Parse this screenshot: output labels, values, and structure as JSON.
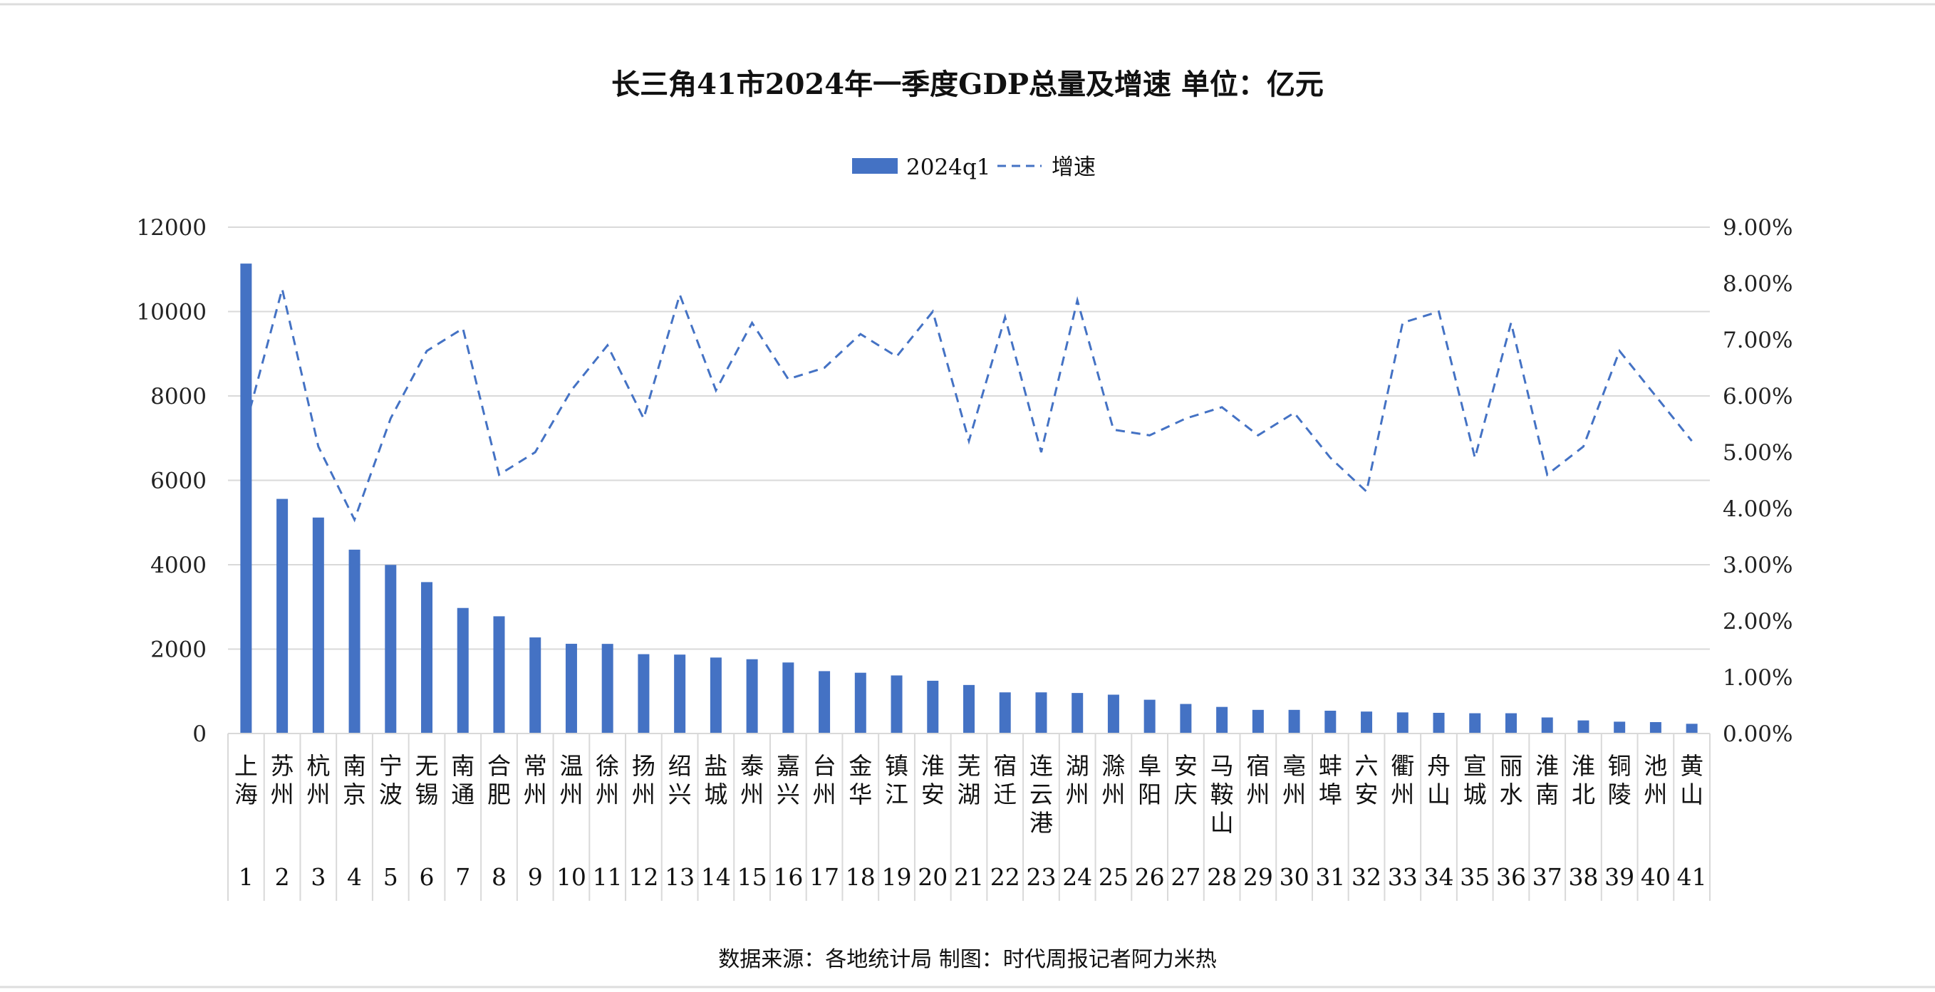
{
  "chart_data": {
    "type": "bar",
    "title": "长三角41市2024年一季度GDP总量及增速 单位：亿元",
    "source": "数据来源：各地统计局 制图：时代周报记者阿力米热",
    "legend": [
      "2024q1",
      "增速"
    ],
    "legend_position": "top",
    "colors": {
      "bar": "#4472C4",
      "line": "#4472C4",
      "grid": "#D9D9D9"
    },
    "ylim": [
      0,
      12000
    ],
    "y_ticks": [
      "0",
      "2000",
      "4000",
      "6000",
      "8000",
      "10000",
      "12000"
    ],
    "y2lim": [
      0,
      9
    ],
    "y2_ticks": [
      "0.00%",
      "1.00%",
      "2.00%",
      "3.00%",
      "4.00%",
      "5.00%",
      "6.00%",
      "7.00%",
      "8.00%",
      "9.00%"
    ],
    "categories": [
      "上海",
      "苏州",
      "杭州",
      "南京",
      "宁波",
      "无锡",
      "南通",
      "合肥",
      "常州",
      "温州",
      "徐州",
      "扬州",
      "绍兴",
      "盐城",
      "泰州",
      "嘉兴",
      "台州",
      "金华",
      "镇江",
      "淮安",
      "芜湖",
      "宿迁",
      "连云港",
      "湖州",
      "滁州",
      "阜阳",
      "安庆",
      "马鞍山",
      "宿州",
      "亳州",
      "蚌埠",
      "六安",
      "衢州",
      "舟山",
      "宣城",
      "丽水",
      "淮南",
      "淮北",
      "铜陵",
      "池州",
      "黄山"
    ],
    "ranks": [
      "1",
      "2",
      "3",
      "4",
      "5",
      "6",
      "7",
      "8",
      "9",
      "10",
      "11",
      "12",
      "13",
      "14",
      "15",
      "16",
      "17",
      "18",
      "19",
      "20",
      "21",
      "22",
      "23",
      "24",
      "25",
      "26",
      "27",
      "28",
      "29",
      "30",
      "31",
      "32",
      "33",
      "34",
      "35",
      "36",
      "37",
      "38",
      "39",
      "40",
      "41"
    ],
    "series": [
      {
        "name": "2024q1",
        "type": "bar",
        "axis": "left",
        "values": [
          11137,
          5560,
          5118,
          4357,
          3996,
          3588,
          2975,
          2778,
          2277,
          2126,
          2124,
          1880,
          1870,
          1800,
          1760,
          1683,
          1478,
          1440,
          1376,
          1250,
          1150,
          975,
          975,
          960,
          920,
          800,
          700,
          630,
          560,
          560,
          540,
          520,
          500,
          490,
          480,
          480,
          380,
          310,
          280,
          270,
          230
        ]
      },
      {
        "name": "增速",
        "type": "line",
        "axis": "right",
        "unit": "%",
        "values": [
          5.5,
          7.9,
          5.1,
          3.8,
          5.6,
          6.8,
          7.2,
          4.6,
          5.0,
          6.1,
          6.9,
          5.6,
          7.8,
          6.1,
          7.3,
          6.3,
          6.5,
          7.1,
          6.7,
          7.5,
          5.2,
          7.4,
          5.0,
          7.7,
          5.4,
          5.3,
          5.6,
          5.8,
          5.3,
          5.7,
          4.9,
          4.3,
          7.3,
          7.5,
          4.9,
          7.3,
          4.6,
          5.1,
          6.8,
          6.0,
          5.2
        ]
      }
    ]
  }
}
